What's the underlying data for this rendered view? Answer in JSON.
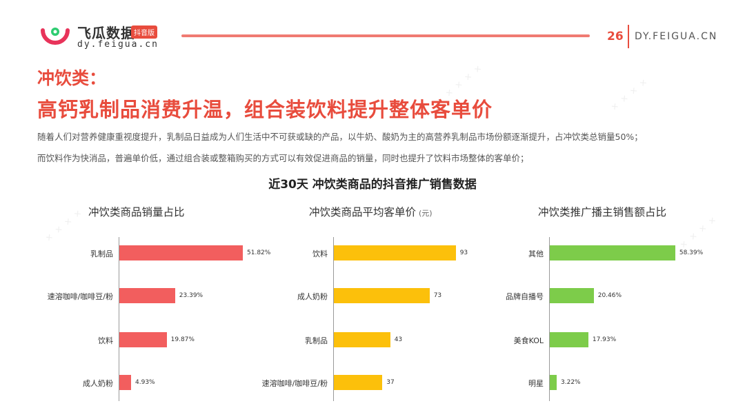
{
  "brand": {
    "name": "飞瓜数据",
    "badge": "抖音版",
    "url": "dy.feigua.cn"
  },
  "page": {
    "number": "26",
    "site": "DY.FEIGUA.CN"
  },
  "heading": {
    "line1": "冲饮类：",
    "line2": "高钙乳制品消费升温，组合装饮料提升整体客单价"
  },
  "paragraph": [
    "随着人们对营养健康重视度提升，乳制品日益成为人们生活中不可获或缺的产品，以牛奶、酸奶为主的高营养乳制品市场份额逐渐提升，占冲饮类总销量50%；",
    "而饮料作为快消品，普遍单价低，通过组合装或整箱购买的方式可以有效促进商品的销量，同时也提升了饮料市场整体的客单价；"
  ],
  "main_title": "近30天 冲饮类商品的抖音推广销售数据",
  "colors": {
    "red": "#f25e5e",
    "yellow": "#fcc00b",
    "green": "#7dcc4a",
    "accent": "#e84c3d"
  },
  "chart_data": [
    {
      "type": "bar",
      "orientation": "horizontal",
      "title": "冲饮类商品销量占比",
      "categories": [
        "乳制品",
        "速溶咖啡/咖啡豆/粉",
        "饮料",
        "成人奶粉"
      ],
      "values": [
        51.82,
        23.39,
        19.87,
        4.93
      ],
      "labels": [
        "51.82%",
        "23.39%",
        "19.87%",
        "4.93%"
      ],
      "xlim": [
        0,
        55
      ],
      "color": "#f25e5e"
    },
    {
      "type": "bar",
      "orientation": "horizontal",
      "title": "冲饮类商品平均客单价",
      "unit": "(元)",
      "categories": [
        "饮料",
        "成人奶粉",
        "乳制品",
        "速溶咖啡/咖啡豆/粉"
      ],
      "values": [
        93,
        73,
        43,
        37
      ],
      "labels": [
        "93",
        "73",
        "43",
        "37"
      ],
      "xlim": [
        0,
        100
      ],
      "color": "#fcc00b"
    },
    {
      "type": "bar",
      "orientation": "horizontal",
      "title": "冲饮类推广播主销售额占比",
      "categories": [
        "其他",
        "品牌自播号",
        "美食KOL",
        "明星"
      ],
      "values": [
        58.39,
        20.46,
        17.93,
        3.22
      ],
      "labels": [
        "58.39%",
        "20.46%",
        "17.93%",
        "3.22%"
      ],
      "xlim": [
        0,
        61
      ],
      "color": "#7dcc4a"
    }
  ]
}
